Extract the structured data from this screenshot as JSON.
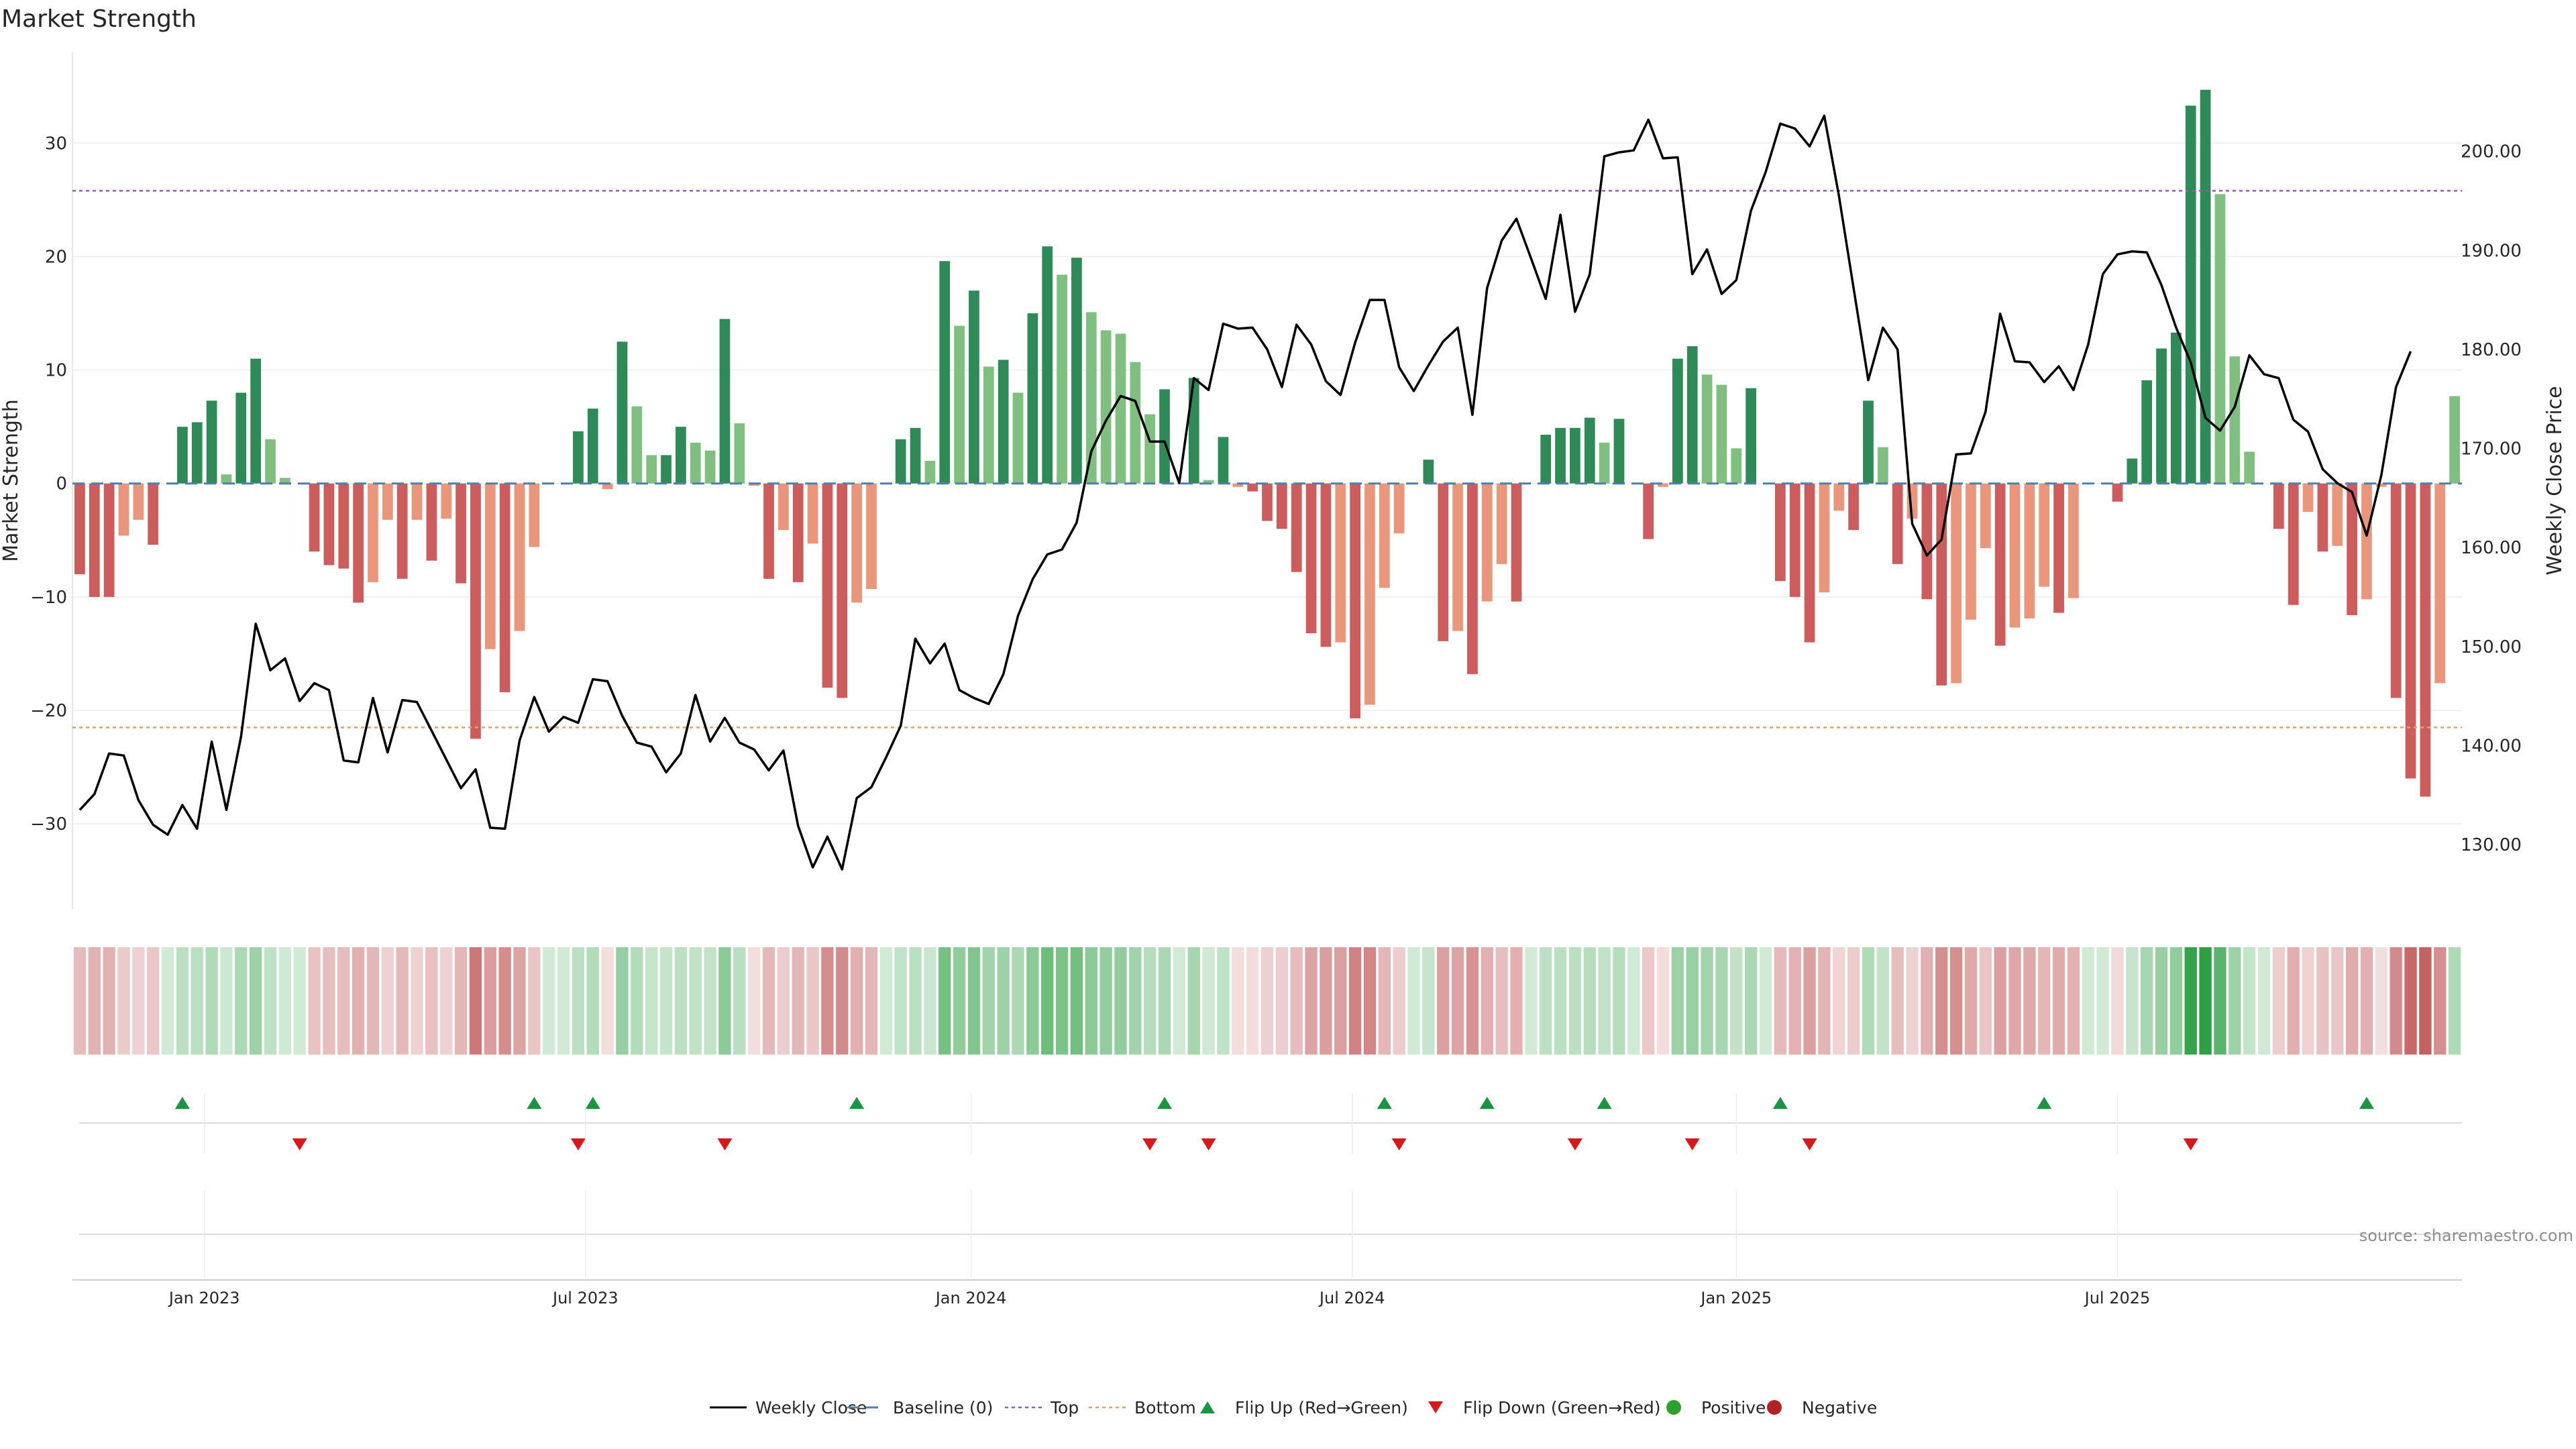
{
  "title": "Market Strength",
  "source": "source: sharemaestro.com",
  "colors": {
    "pos_strong": "#2e8b57",
    "pos_weak": "#7fbf7f",
    "neg_strong": "#cd5c5c",
    "neg_weak": "#e9967a",
    "price_line": "#000000",
    "baseline": "#4f7fab",
    "top_line": "#9b59b6",
    "bottom_line": "#e8a35a",
    "flip_up": "#1a9641",
    "flip_down": "#d7191c"
  },
  "chart_data": {
    "type": "bar",
    "ylabel": "Market Strength",
    "y2label": "Weekly Close Price",
    "ylim": [
      -37.5,
      38
    ],
    "y_ticks": [
      30,
      20,
      10,
      0,
      -10,
      -20,
      -30
    ],
    "y_tick_labels": [
      "30",
      "20",
      "10",
      "0",
      "−10",
      "−20",
      "−30"
    ],
    "y2lim": [
      123.5,
      210
    ],
    "y2_ticks": [
      200,
      190,
      180,
      170,
      160,
      150,
      140,
      130
    ],
    "y2_tick_labels": [
      "200.00",
      "190.00",
      "180.00",
      "170.00",
      "160.00",
      "150.00",
      "140.00",
      "130.00"
    ],
    "x_tick_labels": [
      {
        "label": "Jan 2023",
        "index": 8.5
      },
      {
        "label": "Jul 2023",
        "index": 34.5
      },
      {
        "label": "Jan 2024",
        "index": 60.8
      },
      {
        "label": "Jul 2024",
        "index": 86.8
      },
      {
        "label": "Jan 2025",
        "index": 113.0
      },
      {
        "label": "Jul 2025",
        "index": 139.0
      }
    ],
    "top_level": 25.8,
    "bottom_level": -21.5,
    "baseline": 0,
    "bars": [
      -8,
      -10,
      -10,
      -4.6,
      -3.2,
      -5.4,
      0,
      5,
      5.4,
      7.3,
      0.8,
      8,
      11,
      3.9,
      0.5,
      0,
      -6,
      -7.2,
      -7.5,
      -10.5,
      -8.7,
      -3.2,
      -8.4,
      -3.2,
      -6.8,
      -3.1,
      -8.8,
      -22.5,
      -14.6,
      -18.4,
      -13,
      -5.6,
      0,
      0,
      4.6,
      6.6,
      -0.5,
      12.5,
      6.8,
      2.5,
      2.5,
      5,
      3.6,
      2.9,
      14.5,
      5.3,
      -0.2,
      -8.4,
      -4.1,
      -8.7,
      -5.3,
      -18,
      -18.9,
      -10.5,
      -9.3,
      0,
      3.9,
      4.9,
      2,
      19.6,
      13.9,
      17,
      10.3,
      10.9,
      8,
      15,
      20.9,
      18.4,
      19.9,
      15.1,
      13.5,
      13.2,
      10.7,
      6.1,
      8.3,
      0,
      9.3,
      0.3,
      4.1,
      -0.3,
      -0.7,
      -3.3,
      -4,
      -7.8,
      -13.2,
      -14.4,
      -14,
      -20.7,
      -19.5,
      -9.2,
      -4.4,
      0,
      2.1,
      -13.9,
      -13,
      -16.8,
      -10.4,
      -7.1,
      -10.4,
      0,
      4.3,
      4.9,
      4.9,
      5.8,
      3.6,
      5.7,
      0,
      -4.9,
      -0.3,
      11,
      12.1,
      9.6,
      8.7,
      3.1,
      8.4,
      0,
      -8.6,
      -10,
      -14,
      -9.6,
      -2.4,
      -4.1,
      7.3,
      3.2,
      -7.1,
      -3.1,
      -10.2,
      -17.8,
      -17.6,
      -12,
      -5.7,
      -14.3,
      -12.7,
      -11.9,
      -9.1,
      -11.4,
      -10.1,
      0,
      0,
      -1.6,
      2.2,
      9.1,
      11.9,
      13.3,
      33.3,
      34.7,
      25.5,
      11.2,
      2.8,
      0,
      -4,
      -10.7,
      -2.5,
      -6,
      -5.5,
      -11.6,
      -10.2,
      -0.3,
      -18.9,
      -26,
      -27.6,
      -17.6,
      7.7
    ],
    "price": [
      133.5,
      135.1,
      139.2,
      139,
      134.5,
      132,
      131,
      134,
      131.6,
      140.4,
      133.5,
      140.9,
      152.3,
      147.6,
      148.8,
      144.5,
      146.3,
      145.6,
      138.5,
      138.3,
      144.8,
      139.3,
      144.6,
      144.4,
      141.5,
      138.6,
      135.7,
      137.6,
      131.7,
      131.6,
      140.5,
      144.9,
      141.4,
      142.9,
      142.3,
      146.7,
      146.5,
      143,
      140.3,
      139.9,
      137.3,
      139.2,
      145.1,
      140.4,
      142.8,
      140.3,
      139.6,
      137.5,
      139.5,
      131.9,
      127.7,
      130.8,
      127.5,
      134.7,
      135.8,
      138.8,
      142,
      150.8,
      148.3,
      150.3,
      145.6,
      144.8,
      144.2,
      147.2,
      153.1,
      156.8,
      159.3,
      159.8,
      162.5,
      169.7,
      172.8,
      175.3,
      174.8,
      170.7,
      170.7,
      166.5,
      177.1,
      175.9,
      182.6,
      182.1,
      182.2,
      180,
      176.2,
      182.5,
      180.5,
      176.8,
      175.4,
      180.7,
      185,
      185,
      178.2,
      175.8,
      178.4,
      180.8,
      182.2,
      173.4,
      186.2,
      191,
      193.2,
      189.2,
      185.1,
      193.6,
      183.8,
      187.6,
      199.5,
      199.9,
      200.1,
      203.2,
      199.3,
      199.4,
      187.6,
      190.1,
      185.6,
      187,
      194,
      197.9,
      202.8,
      202.3,
      200.5,
      203.6,
      195.5,
      186.2,
      176.9,
      182.2,
      180,
      162.4,
      159.2,
      160.8,
      169.4,
      169.5,
      173.7,
      183.6,
      178.8,
      178.7,
      176.7,
      178.3,
      175.9,
      180.5,
      187.6,
      189.6,
      189.9,
      189.8,
      186.5,
      182.2,
      178.7,
      173.1,
      171.8,
      174.2,
      179.4,
      177.5,
      177.1,
      172.9,
      171.7,
      167.9,
      166.5,
      165.6,
      161.2,
      167.3,
      176.2,
      179.8
    ],
    "heatmap_intensity_range": [
      -27.6,
      34.7
    ],
    "flip_up_indices": [
      7,
      31,
      35,
      53,
      74,
      89,
      96,
      104,
      116,
      134,
      156
    ],
    "flip_down_indices": [
      15,
      34,
      44,
      73,
      77,
      90,
      102,
      110,
      118,
      144
    ],
    "legend": [
      "Weekly Close",
      "Baseline (0)",
      "Top",
      "Bottom",
      "Flip Up (Red→Green)",
      "Flip Down (Green→Red)",
      "Positive",
      "Negative"
    ]
  }
}
